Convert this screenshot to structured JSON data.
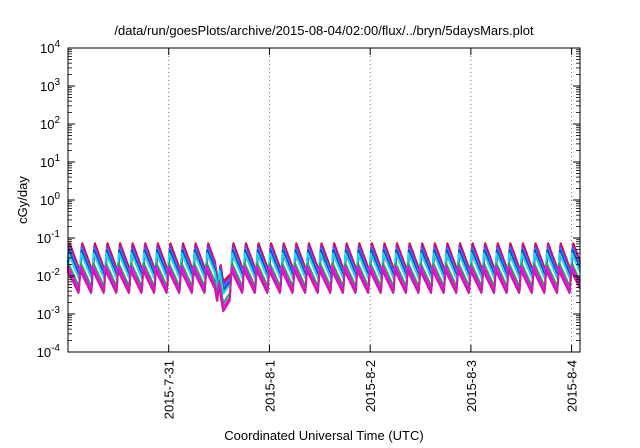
{
  "chart_data": {
    "type": "line",
    "title": "/data/run/goesPlots/archive/2015-08-04/02:00/flux/../bryn/5daysMars.plot",
    "xlabel": "Coordinated Universal Time (UTC)",
    "ylabel": "cGy/day",
    "y_scale": "log",
    "ylim": [
      0.0001,
      10000
    ],
    "xlim": [
      "2015-07-30 00:00",
      "2015-08-04 02:00"
    ],
    "x_ticks": [
      {
        "label": "2015-7-31",
        "t": "2015-07-31"
      },
      {
        "label": "2015-8-1",
        "t": "2015-08-01"
      },
      {
        "label": "2015-8-2",
        "t": "2015-08-02"
      },
      {
        "label": "2015-8-3",
        "t": "2015-08-03"
      },
      {
        "label": "2015-8-4",
        "t": "2015-08-04"
      }
    ],
    "y_ticks": [
      {
        "base": "10",
        "exp": "-4",
        "value": 0.0001
      },
      {
        "base": "10",
        "exp": "-3",
        "value": 0.001
      },
      {
        "base": "10",
        "exp": "-2",
        "value": 0.01
      },
      {
        "base": "10",
        "exp": "-1",
        "value": 0.1
      },
      {
        "base": "10",
        "exp": "0",
        "value": 1
      },
      {
        "base": "10",
        "exp": "1",
        "value": 10
      },
      {
        "base": "10",
        "exp": "2",
        "value": 100
      },
      {
        "base": "10",
        "exp": "3",
        "value": 1000
      },
      {
        "base": "10",
        "exp": "4",
        "value": 10000
      }
    ],
    "grid": "vertical dotted lines at x ticks",
    "legend": "none",
    "pattern": {
      "description": "sawtooth: sharp rise then decay, repeating every ~3 hours",
      "period_hours": 3,
      "dip": {
        "start": "2015-07-31 11:00",
        "minimum": "2015-07-31 13:00",
        "end": "2015-07-31 15:00",
        "min_factor": 0.15
      }
    },
    "series": [
      {
        "color": "#e8001c",
        "peak": 0.075,
        "trough": 0.012
      },
      {
        "color": "#9b1fd6",
        "peak": 0.065,
        "trough": 0.011
      },
      {
        "color": "#2a7fff",
        "peak": 0.055,
        "trough": 0.01
      },
      {
        "color": "#1f3fbf",
        "peak": 0.048,
        "trough": 0.009
      },
      {
        "color": "#1ed7e0",
        "peak": 0.04,
        "trough": 0.008
      },
      {
        "color": "#1fa84a",
        "peak": 0.022,
        "trough": 0.005
      },
      {
        "color": "#ff00ff",
        "peak": 0.018,
        "trough": 0.004
      },
      {
        "color": "#cc1aa8",
        "peak": 0.014,
        "trough": 0.0035
      }
    ]
  }
}
